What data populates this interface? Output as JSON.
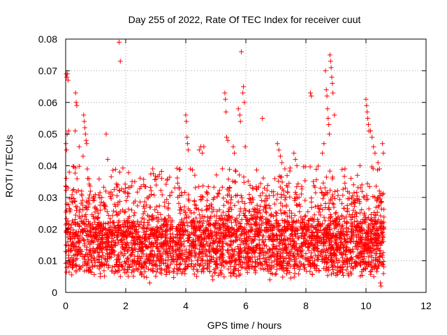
{
  "chart_data": {
    "type": "scatter",
    "title": "Day 255 of 2022, Rate Of TEC Index for receiver cuut",
    "xlabel": "GPS time / hours",
    "ylabel": "ROTI / TECUs",
    "xlim": [
      0,
      12
    ],
    "ylim": [
      0,
      0.08
    ],
    "xticks": [
      0,
      2,
      4,
      6,
      8,
      10,
      12
    ],
    "yticks": [
      0,
      0.01,
      0.02,
      0.03,
      0.04,
      0.05,
      0.06,
      0.07,
      0.08
    ],
    "xtick_labels": [
      "0",
      "2",
      "4",
      "6",
      "8",
      "10",
      "12"
    ],
    "ytick_labels": [
      "0",
      "0.01",
      "0.02",
      "0.03",
      "0.04",
      "0.05",
      "0.06",
      "0.07",
      "0.08"
    ],
    "grid": true,
    "marker": "+",
    "series_color": "#ff0000",
    "x_range_data": [
      0.0,
      10.6
    ],
    "bulk_band": [
      0.004,
      0.03
    ],
    "points": [
      [
        0.02,
        0.069
      ],
      [
        0.04,
        0.068
      ],
      [
        0.06,
        0.069
      ],
      [
        0.08,
        0.067
      ],
      [
        0.05,
        0.05
      ],
      [
        0.1,
        0.051
      ],
      [
        0.01,
        0.047
      ],
      [
        0.03,
        0.045
      ],
      [
        0.12,
        0.038
      ],
      [
        0.02,
        0.036
      ],
      [
        0.08,
        0.033
      ],
      [
        0.33,
        0.063
      ],
      [
        0.35,
        0.06
      ],
      [
        0.37,
        0.059
      ],
      [
        0.32,
        0.051
      ],
      [
        0.45,
        0.046
      ],
      [
        0.6,
        0.056
      ],
      [
        0.62,
        0.054
      ],
      [
        0.64,
        0.052
      ],
      [
        0.66,
        0.05
      ],
      [
        0.68,
        0.048
      ],
      [
        0.7,
        0.047
      ],
      [
        0.58,
        0.043
      ],
      [
        1.35,
        0.05
      ],
      [
        1.4,
        0.042
      ],
      [
        1.78,
        0.079
      ],
      [
        1.82,
        0.073
      ],
      [
        1.8,
        0.038
      ],
      [
        2.3,
        0.035
      ],
      [
        2.6,
        0.034
      ],
      [
        2.9,
        0.039
      ],
      [
        3.2,
        0.036
      ],
      [
        4.0,
        0.056
      ],
      [
        4.02,
        0.054
      ],
      [
        4.04,
        0.049
      ],
      [
        4.06,
        0.047
      ],
      [
        4.08,
        0.045
      ],
      [
        4.15,
        0.039
      ],
      [
        4.3,
        0.037
      ],
      [
        4.45,
        0.045
      ],
      [
        4.5,
        0.046
      ],
      [
        4.55,
        0.044
      ],
      [
        4.6,
        0.046
      ],
      [
        5.3,
        0.063
      ],
      [
        5.32,
        0.061
      ],
      [
        5.34,
        0.057
      ],
      [
        5.36,
        0.049
      ],
      [
        5.4,
        0.048
      ],
      [
        5.58,
        0.046
      ],
      [
        5.62,
        0.044
      ],
      [
        5.75,
        0.058
      ],
      [
        5.8,
        0.056
      ],
      [
        5.82,
        0.054
      ],
      [
        5.85,
        0.076
      ],
      [
        5.9,
        0.063
      ],
      [
        5.92,
        0.065
      ],
      [
        5.95,
        0.06
      ],
      [
        5.98,
        0.046
      ],
      [
        6.55,
        0.055
      ],
      [
        7.05,
        0.047
      ],
      [
        7.1,
        0.045
      ],
      [
        7.15,
        0.043
      ],
      [
        7.2,
        0.041
      ],
      [
        7.3,
        0.039
      ],
      [
        7.6,
        0.044
      ],
      [
        7.65,
        0.042
      ],
      [
        7.7,
        0.04
      ],
      [
        8.15,
        0.063
      ],
      [
        8.18,
        0.062
      ],
      [
        8.65,
        0.07
      ],
      [
        8.68,
        0.064
      ],
      [
        8.7,
        0.062
      ],
      [
        8.72,
        0.058
      ],
      [
        8.74,
        0.055
      ],
      [
        8.76,
        0.053
      ],
      [
        8.78,
        0.05
      ],
      [
        8.8,
        0.075
      ],
      [
        8.82,
        0.073
      ],
      [
        8.84,
        0.071
      ],
      [
        8.86,
        0.068
      ],
      [
        8.88,
        0.066
      ],
      [
        8.9,
        0.063
      ],
      [
        8.95,
        0.056
      ],
      [
        8.6,
        0.047
      ],
      [
        8.55,
        0.044
      ],
      [
        9.3,
        0.039
      ],
      [
        9.5,
        0.036
      ],
      [
        9.8,
        0.04
      ],
      [
        10.0,
        0.061
      ],
      [
        10.02,
        0.059
      ],
      [
        10.04,
        0.057
      ],
      [
        10.06,
        0.055
      ],
      [
        10.08,
        0.053
      ],
      [
        10.1,
        0.051
      ],
      [
        10.15,
        0.051
      ],
      [
        10.2,
        0.049
      ],
      [
        10.25,
        0.046
      ],
      [
        10.3,
        0.044
      ],
      [
        10.4,
        0.041
      ],
      [
        10.45,
        0.039
      ],
      [
        10.55,
        0.047
      ],
      [
        10.58,
        0.044
      ],
      [
        10.5,
        0.002
      ],
      [
        10.48,
        0.003
      ],
      [
        2.8,
        0.003
      ],
      [
        4.9,
        0.004
      ],
      [
        6.8,
        0.004
      ]
    ]
  }
}
